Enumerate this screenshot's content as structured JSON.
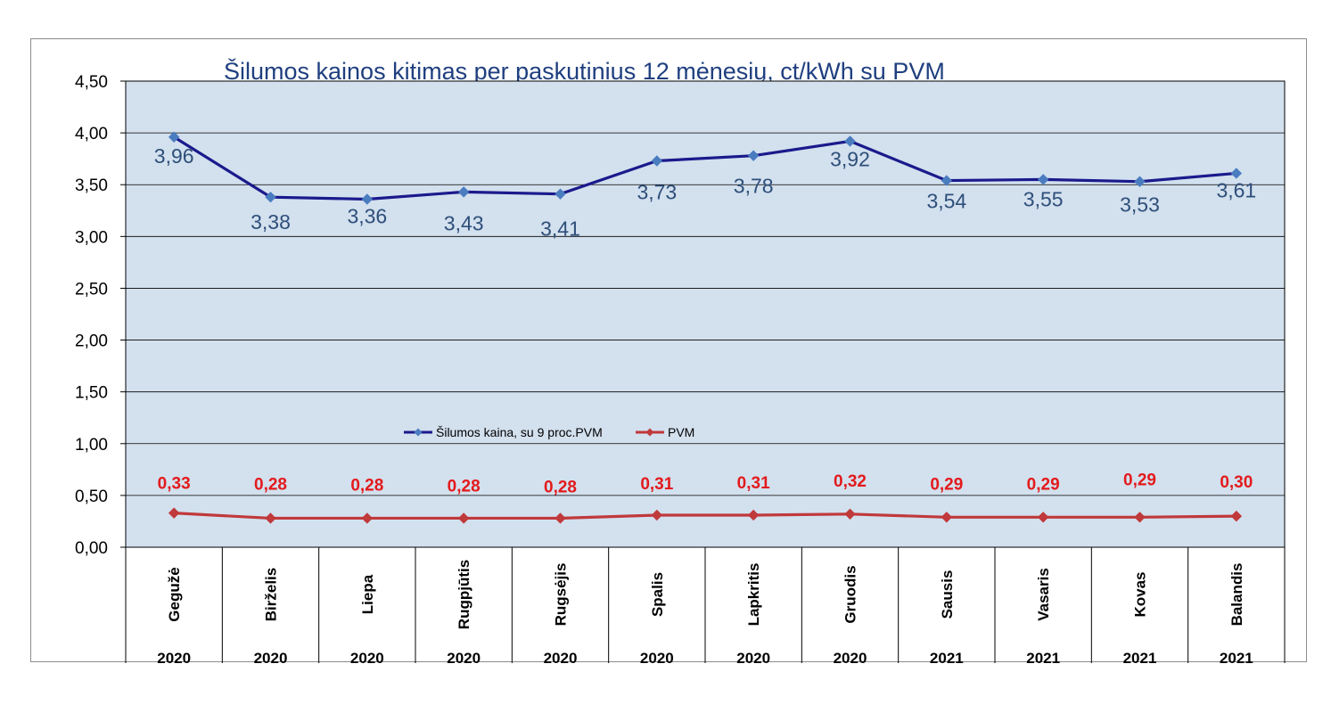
{
  "chart_data": {
    "type": "line",
    "title": "Šilumos kainos kitimas per paskutinius 12 mėnesių, ct/kWh su PVM",
    "categories": [
      "Gegužė",
      "Birželis",
      "Liepa",
      "Rugpjūtis",
      "Rugsėjis",
      "Spalis",
      "Lapkritis",
      "Gruodis",
      "Sausis",
      "Vasaris",
      "Kovas",
      "Balandis"
    ],
    "years": [
      "2020",
      "2020",
      "2020",
      "2020",
      "2020",
      "2020",
      "2020",
      "2020",
      "2021",
      "2021",
      "2021",
      "2021"
    ],
    "ylim": [
      0,
      4.5
    ],
    "yticks": [
      "0,00",
      "0,50",
      "1,00",
      "1,50",
      "2,00",
      "2,50",
      "3,00",
      "3,50",
      "4,00",
      "4,50"
    ],
    "grid": true,
    "legend_position": "middle-center",
    "series": [
      {
        "name": "Šilumos kaina, su 9 proc.PVM",
        "color": "#1a1a8c",
        "values": [
          3.96,
          3.38,
          3.36,
          3.43,
          3.41,
          3.73,
          3.78,
          3.92,
          3.54,
          3.55,
          3.53,
          3.61
        ],
        "labels": [
          "3,96",
          "3,38",
          "3,36",
          "3,43",
          "3,41",
          "3,73",
          "3,78",
          "3,92",
          "3,54",
          "3,55",
          "3,53",
          "3,61"
        ]
      },
      {
        "name": "PVM",
        "color": "#c0393b",
        "values": [
          0.33,
          0.28,
          0.28,
          0.28,
          0.28,
          0.31,
          0.31,
          0.32,
          0.29,
          0.29,
          0.29,
          0.3
        ],
        "labels": [
          "0,33",
          "0,28",
          "0,28",
          "0,28",
          "0,28",
          "0,31",
          "0,31",
          "0,32",
          "0,29",
          "0,29",
          "0,29",
          "0,30"
        ]
      }
    ]
  },
  "colors": {
    "plot_background": "#d3e0ee",
    "marker_price": "#4a7cc0",
    "marker_vat": "#c0393b",
    "label_price": "#2e4f7a",
    "label_vat": "#e31a1c"
  }
}
